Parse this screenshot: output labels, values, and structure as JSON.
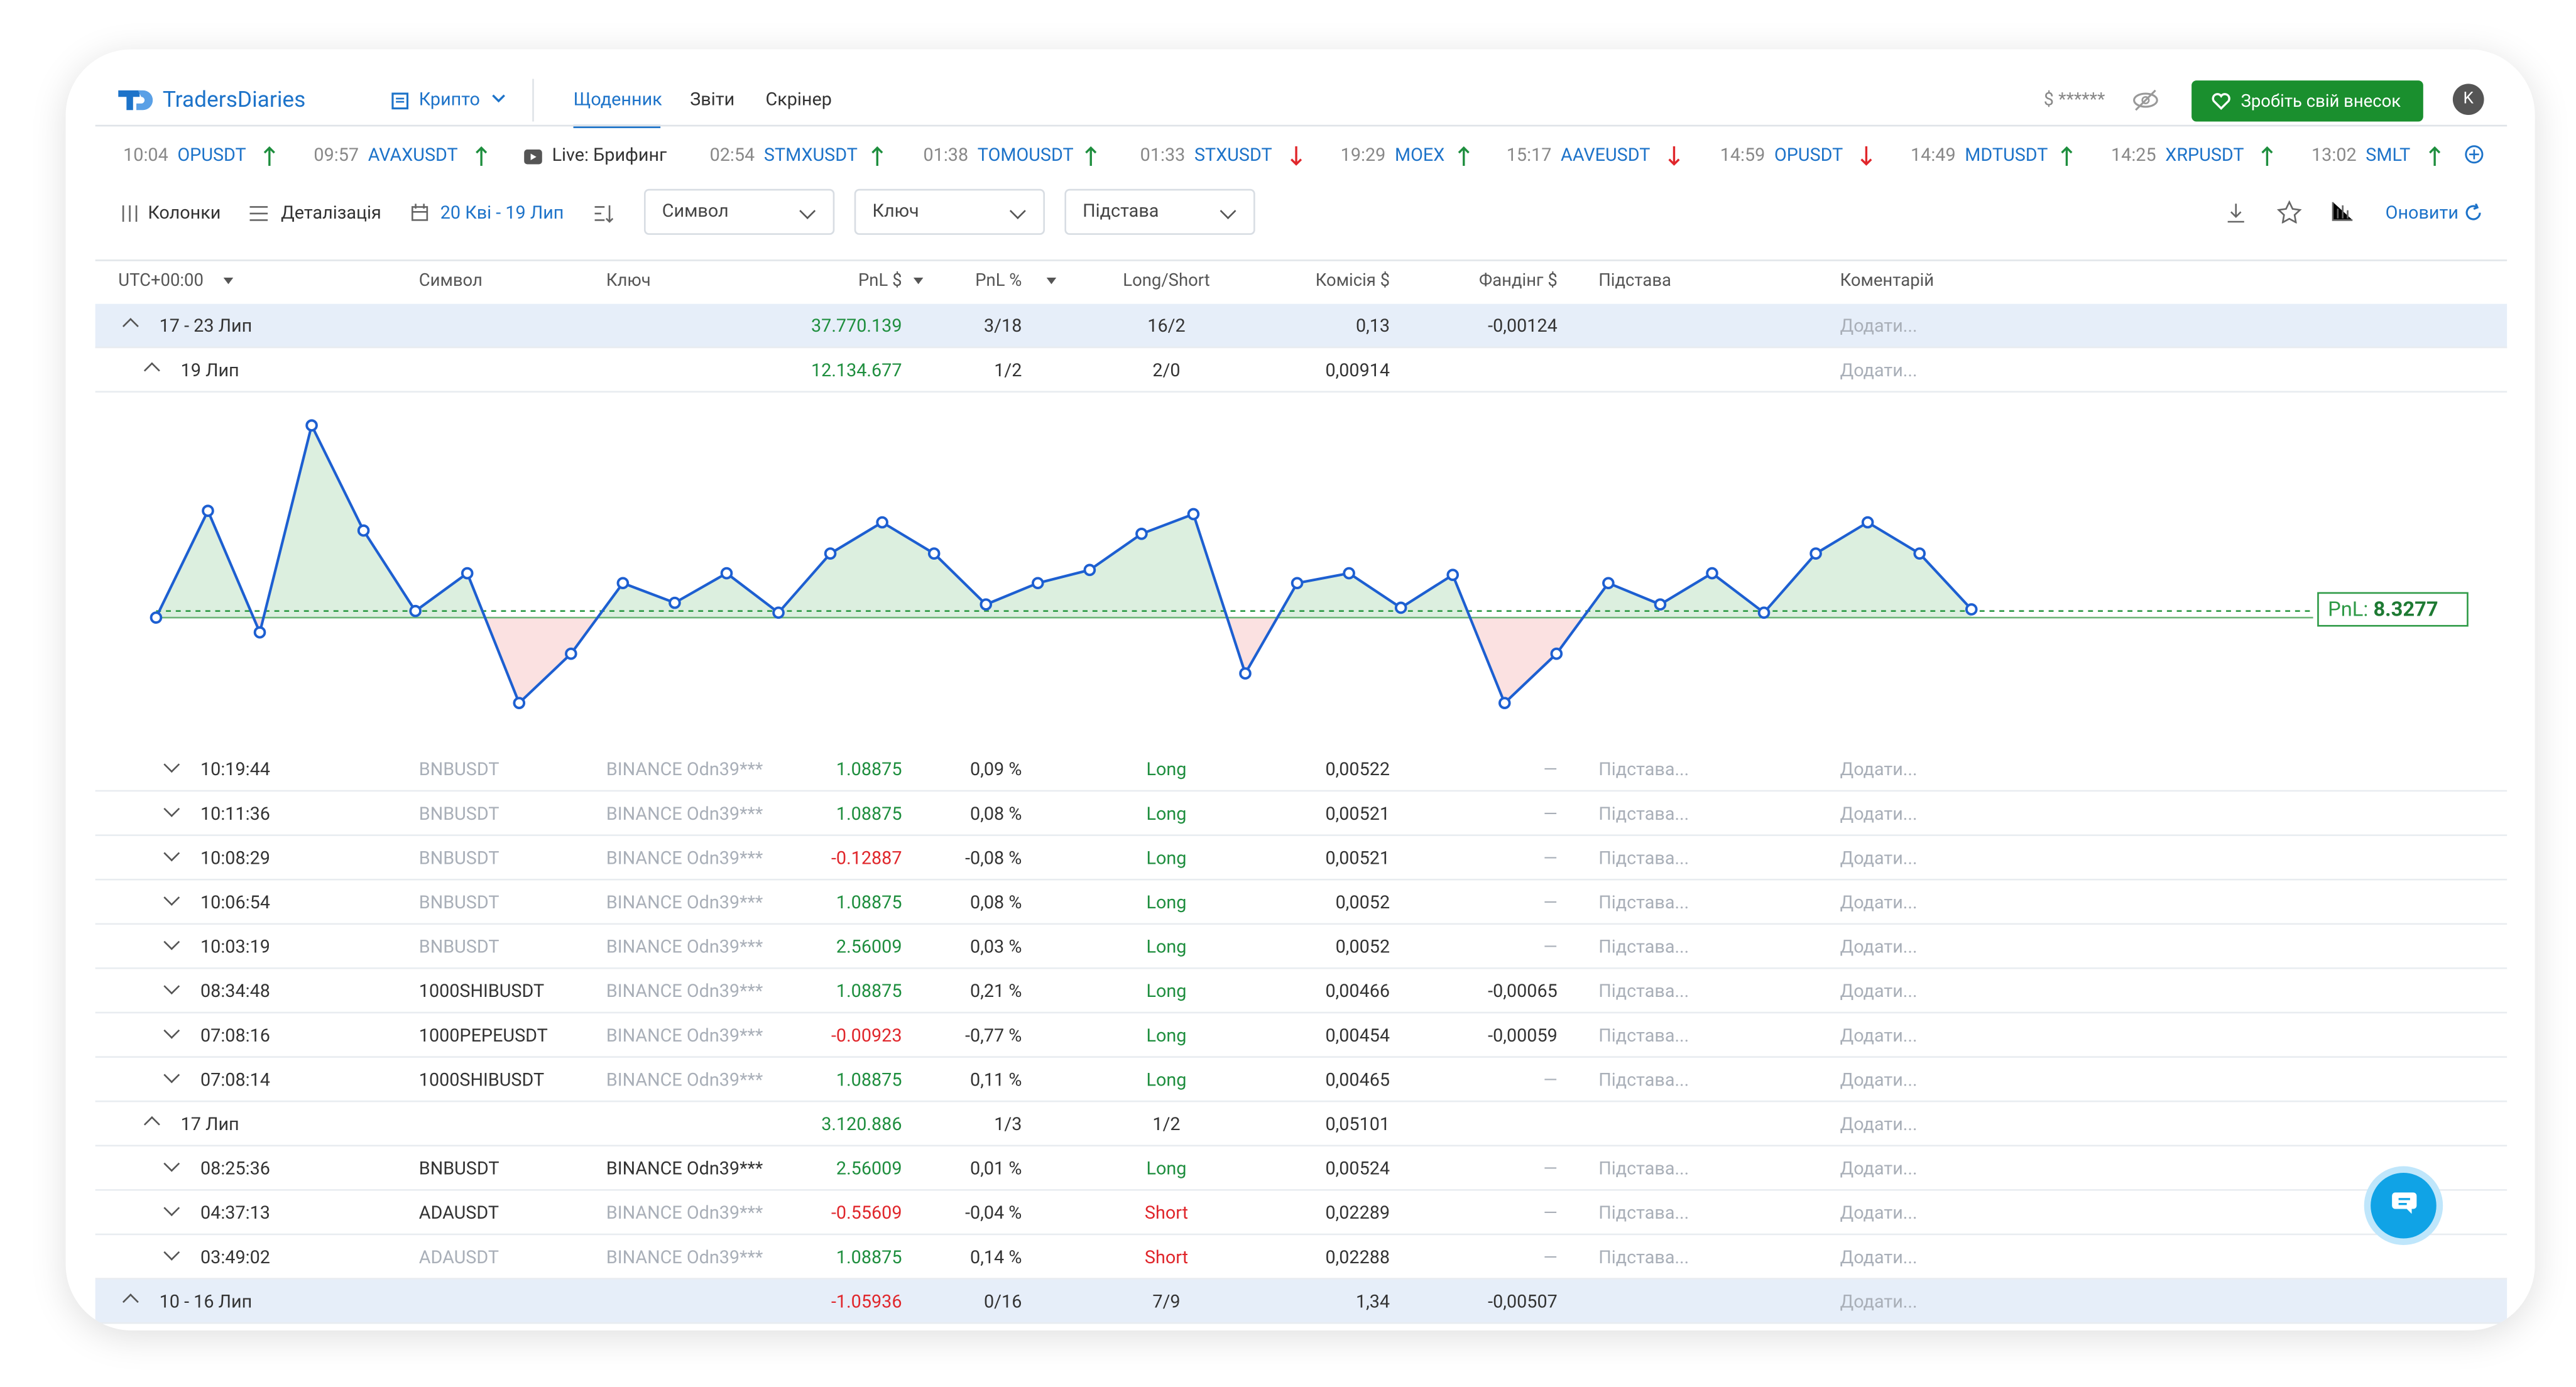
{
  "header": {
    "logo": "TradersDiaries",
    "market": "Крипто",
    "nav": [
      "Щоденник",
      "Звіти",
      "Скрінер"
    ],
    "balance": "$ ******",
    "donate": "Зробіть свій внесок",
    "avatar": "K"
  },
  "ticker": [
    {
      "time": "10:04",
      "symbol": "OPUSDT",
      "dir": "up"
    },
    {
      "time": "09:57",
      "symbol": "AVAXUSDT",
      "dir": "up"
    },
    {
      "live": "Live: Брифинг"
    },
    {
      "time": "02:54",
      "symbol": "STMXUSDT",
      "dir": "up"
    },
    {
      "time": "01:38",
      "symbol": "TOMOUSDT",
      "dir": "up"
    },
    {
      "time": "01:33",
      "symbol": "STXUSDT",
      "dir": "down"
    },
    {
      "time": "19:29",
      "symbol": "MOEX",
      "dir": "up"
    },
    {
      "time": "15:17",
      "symbol": "AAVEUSDT",
      "dir": "down"
    },
    {
      "time": "14:59",
      "symbol": "OPUSDT",
      "dir": "down"
    },
    {
      "time": "14:49",
      "symbol": "MDTUSDT",
      "dir": "up"
    },
    {
      "time": "14:25",
      "symbol": "XRPUSDT",
      "dir": "up"
    },
    {
      "time": "13:02",
      "symbol": "SMLT",
      "dir": "up"
    }
  ],
  "toolbar": {
    "columns": "Колонки",
    "detail": "Деталізація",
    "period": "20 Кві - 19 Лип",
    "filters": [
      "Символ",
      "Ключ",
      "Підстава"
    ],
    "refresh": "Оновити"
  },
  "table": {
    "headers": [
      "UTC+00:00",
      "Символ",
      "Ключ",
      "PnL $",
      "PnL %",
      "Long/Short",
      "Комісія $",
      "Фандінг $",
      "Підстава",
      "Коментарій"
    ],
    "rows": [
      {
        "kind": "group",
        "label": "17 - 23 Лип",
        "pnl": "37.770.139",
        "pnl_pct": "3/18",
        "side": "16/2",
        "fee": "0,13",
        "funding": "-0,00124",
        "comment": "Додати..."
      },
      {
        "kind": "day",
        "label": "19 Лип",
        "pnl": "12.134.677",
        "pnl_pct": "1/2",
        "side": "2/0",
        "fee": "0,00914",
        "comment": "Додати..."
      },
      {
        "kind": "trade",
        "label": "10:19:44",
        "symbol": "BNBUSDT",
        "dim_symbol": true,
        "key": "BINANCE Odn39***",
        "dim_key": true,
        "pnl": "1.08875",
        "pnl_pct": "0,09 %",
        "side": "Long",
        "fee": "0,00522",
        "funding": "—",
        "basis": "Підстава...",
        "comment": "Додати..."
      },
      {
        "kind": "trade",
        "label": "10:11:36",
        "symbol": "BNBUSDT",
        "dim_symbol": true,
        "key": "BINANCE Odn39***",
        "dim_key": true,
        "pnl": "1.08875",
        "pnl_pct": "0,08 %",
        "side": "Long",
        "fee": "0,00521",
        "funding": "—",
        "basis": "Підстава...",
        "comment": "Додати..."
      },
      {
        "kind": "trade",
        "label": "10:08:29",
        "symbol": "BNBUSDT",
        "dim_symbol": true,
        "key": "BINANCE Odn39***",
        "dim_key": true,
        "pnl": "-0.12887",
        "pnl_pct": "-0,08 %",
        "side": "Long",
        "fee": "0,00521",
        "funding": "—",
        "basis": "Підстава...",
        "comment": "Додати..."
      },
      {
        "kind": "trade",
        "label": "10:06:54",
        "symbol": "BNBUSDT",
        "dim_symbol": true,
        "key": "BINANCE Odn39***",
        "dim_key": true,
        "pnl": "1.08875",
        "pnl_pct": "0,08 %",
        "side": "Long",
        "fee": "0,0052",
        "funding": "—",
        "basis": "Підстава...",
        "comment": "Додати..."
      },
      {
        "kind": "trade",
        "label": "10:03:19",
        "symbol": "BNBUSDT",
        "dim_symbol": true,
        "key": "BINANCE Odn39***",
        "dim_key": true,
        "pnl": "2.56009",
        "pnl_pct": "0,03 %",
        "side": "Long",
        "fee": "0,0052",
        "funding": "—",
        "basis": "Підстава...",
        "comment": "Додати..."
      },
      {
        "kind": "trade",
        "label": "08:34:48",
        "symbol": "1000SHIBUSDT",
        "dim_symbol": false,
        "key": "BINANCE Odn39***",
        "dim_key": true,
        "pnl": "1.08875",
        "pnl_pct": "0,21 %",
        "side": "Long",
        "fee": "0,00466",
        "funding": "-0,00065",
        "basis": "Підстава...",
        "comment": "Додати..."
      },
      {
        "kind": "trade",
        "label": "07:08:16",
        "symbol": "1000PEPEUSDT",
        "dim_symbol": false,
        "key": "BINANCE Odn39***",
        "dim_key": true,
        "pnl": "-0.00923",
        "pnl_pct": "-0,77 %",
        "side": "Long",
        "fee": "0,00454",
        "funding": "-0,00059",
        "basis": "Підстава...",
        "comment": "Додати..."
      },
      {
        "kind": "trade",
        "label": "07:08:14",
        "symbol": "1000SHIBUSDT",
        "dim_symbol": false,
        "key": "BINANCE Odn39***",
        "dim_key": true,
        "pnl": "1.08875",
        "pnl_pct": "0,11 %",
        "side": "Long",
        "fee": "0,00465",
        "funding": "—",
        "basis": "Підстава...",
        "comment": "Додати..."
      },
      {
        "kind": "day",
        "label": "17 Лип",
        "pnl": "3.120.886",
        "pnl_pct": "1/3",
        "side": "1/2",
        "fee": "0,05101",
        "comment": "Додати..."
      },
      {
        "kind": "trade",
        "label": "08:25:36",
        "symbol": "BNBUSDT",
        "dim_symbol": false,
        "key": "BINANCE Odn39***",
        "dim_key": false,
        "pnl": "2.56009",
        "pnl_pct": "0,01 %",
        "side": "Long",
        "fee": "0,00524",
        "funding": "—",
        "basis": "Підстава...",
        "comment": "Додати..."
      },
      {
        "kind": "trade",
        "label": "04:37:13",
        "symbol": "ADAUSDT",
        "dim_symbol": false,
        "key": "BINANCE Odn39***",
        "dim_key": true,
        "pnl": "-0.55609",
        "pnl_pct": "-0,04 %",
        "side": "Short",
        "fee": "0,02289",
        "funding": "—",
        "basis": "Підстава...",
        "comment": "Додати..."
      },
      {
        "kind": "trade",
        "label": "03:49:02",
        "symbol": "ADAUSDT",
        "dim_symbol": true,
        "key": "BINANCE Odn39***",
        "dim_key": true,
        "pnl": "1.08875",
        "pnl_pct": "0,14 %",
        "side": "Short",
        "fee": "0,02288",
        "funding": "—",
        "basis": "Підстава...",
        "comment": "Додати..."
      },
      {
        "kind": "group",
        "label": "10 - 16 Лип",
        "pnl": "-1.05936",
        "pnl_pct": "0/16",
        "side": "7/9",
        "fee": "1,34",
        "funding": "-0,00507",
        "comment": "Додати..."
      }
    ]
  },
  "chart": {
    "type": "line",
    "values": [
      0,
      6.5,
      -0.9,
      11.7,
      5.3,
      0.4,
      2.7,
      -5.2,
      -2.2,
      2.1,
      0.9,
      2.7,
      0.3,
      3.9,
      5.8,
      3.9,
      0.8,
      2.1,
      2.9,
      5.1,
      6.3,
      -3.4,
      2.1,
      2.7,
      0.6,
      2.6,
      -5.2,
      -2.2,
      2.1,
      0.8,
      2.7,
      0.3,
      3.9,
      5.8,
      3.9,
      0.5
    ],
    "ylim": [
      -7.9,
      13.6
    ],
    "pnl_label": "PnL:",
    "pnl_value": "8.3277",
    "color": "#1d5fd1"
  }
}
